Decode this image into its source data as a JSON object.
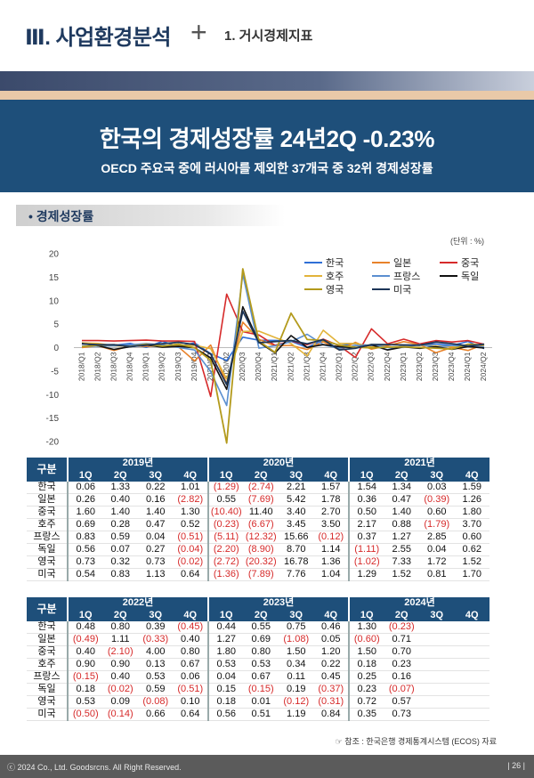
{
  "header": {
    "section_title": "Ⅲ. 사업환경분석",
    "sub_title": "1. 거시경제지표"
  },
  "banner": {
    "title": "한국의 경제성장률 24년2Q -0.23%",
    "subtitle": "OECD 주요국 중에 러시아를 제외한 37개국 중 32위 경제성장률"
  },
  "chart_label": "경제성장률",
  "unit": "(단위 : %)",
  "chart_data": {
    "type": "line",
    "title": "",
    "xlabel": "",
    "ylabel": "",
    "ylim": [
      -20,
      20
    ],
    "yticks": [
      20,
      15,
      10,
      5,
      0,
      -5,
      -10,
      -15,
      -20
    ],
    "grid": false,
    "legend_placement": "top-right",
    "categories": [
      "2018/Q1",
      "2018/Q2",
      "2018/Q3",
      "2018/Q4",
      "2019/Q1",
      "2019/Q2",
      "2019/Q3",
      "2019/Q4",
      "2020/Q1",
      "2020/Q2",
      "2020/Q3",
      "2020/Q4",
      "2021/Q1",
      "2021/Q2",
      "2021/Q3",
      "2021/Q4",
      "2022/Q1",
      "2022/Q2",
      "2022/Q3",
      "2022/Q4",
      "2023/Q1",
      "2023/Q2",
      "2023/Q3",
      "2023/Q4",
      "2024/Q1",
      "2024/Q2"
    ],
    "series": [
      {
        "name": "한국",
        "color": "#2f6fd6",
        "width": 1.6,
        "values": [
          1.0,
          0.6,
          0.5,
          0.9,
          0.06,
          1.33,
          0.22,
          1.01,
          -1.29,
          -2.74,
          2.21,
          1.57,
          1.54,
          1.34,
          0.03,
          1.59,
          0.48,
          0.8,
          0.39,
          -0.45,
          0.44,
          0.55,
          0.75,
          0.46,
          1.3,
          -0.23
        ]
      },
      {
        "name": "일본",
        "color": "#e8822a",
        "width": 1.6,
        "values": [
          0.0,
          0.4,
          -0.6,
          0.4,
          0.26,
          0.4,
          0.16,
          -2.82,
          0.55,
          -7.69,
          5.42,
          1.78,
          0.36,
          0.47,
          -0.39,
          1.26,
          -0.49,
          1.11,
          -0.33,
          0.4,
          1.27,
          0.69,
          -1.08,
          0.05,
          -0.6,
          0.71
        ]
      },
      {
        "name": "중국",
        "color": "#d62a2a",
        "width": 1.6,
        "values": [
          1.5,
          1.5,
          1.4,
          1.5,
          1.6,
          1.4,
          1.4,
          1.3,
          -10.4,
          11.4,
          3.4,
          2.7,
          0.5,
          1.4,
          0.6,
          1.8,
          0.4,
          -2.1,
          4.0,
          0.8,
          1.8,
          0.8,
          1.5,
          1.2,
          1.5,
          0.7
        ]
      },
      {
        "name": "호주",
        "color": "#e2b33a",
        "width": 1.6,
        "values": [
          1.0,
          0.9,
          0.4,
          0.3,
          0.69,
          0.28,
          0.47,
          0.52,
          -0.23,
          -6.67,
          3.45,
          3.5,
          2.17,
          0.88,
          -1.79,
          3.7,
          0.9,
          0.9,
          0.13,
          0.67,
          0.53,
          0.53,
          0.34,
          0.22,
          0.18,
          0.23
        ]
      },
      {
        "name": "프랑스",
        "color": "#5b8fd0",
        "width": 1.6,
        "values": [
          0.3,
          0.3,
          0.4,
          0.6,
          0.83,
          0.59,
          0.04,
          -0.51,
          -5.11,
          -12.32,
          15.66,
          -0.12,
          0.37,
          1.27,
          2.85,
          0.6,
          -0.15,
          0.4,
          0.53,
          0.06,
          0.04,
          0.67,
          0.11,
          0.45,
          0.25,
          0.16
        ]
      },
      {
        "name": "독일",
        "color": "#111111",
        "width": 1.6,
        "values": [
          0.9,
          0.4,
          -0.4,
          0.2,
          0.56,
          0.07,
          0.27,
          -0.04,
          -2.2,
          -8.9,
          8.7,
          1.14,
          -1.11,
          2.55,
          0.04,
          0.62,
          0.18,
          -0.02,
          0.59,
          -0.51,
          0.15,
          -0.15,
          0.19,
          -0.37,
          0.23,
          -0.07
        ]
      },
      {
        "name": "영국",
        "color": "#b39a1c",
        "width": 1.8,
        "values": [
          0.2,
          0.5,
          0.6,
          0.2,
          0.73,
          0.32,
          0.73,
          -0.02,
          -2.72,
          -20.32,
          16.78,
          1.36,
          -1.02,
          7.33,
          1.72,
          1.52,
          0.53,
          0.09,
          -0.08,
          0.1,
          0.18,
          0.01,
          -0.12,
          -0.31,
          0.72,
          0.57
        ]
      },
      {
        "name": "미국",
        "color": "#1c3557",
        "width": 1.8,
        "values": [
          0.8,
          0.6,
          0.6,
          0.2,
          0.54,
          0.83,
          1.13,
          0.64,
          -1.36,
          -7.89,
          7.76,
          1.04,
          1.29,
          1.52,
          0.81,
          1.7,
          -0.5,
          -0.14,
          0.66,
          0.64,
          0.56,
          0.51,
          1.19,
          0.84,
          0.35,
          0.73
        ]
      }
    ]
  },
  "table1": {
    "gubun": "구분",
    "years": [
      "2019년",
      "2020년",
      "2021년"
    ],
    "quarters": [
      "1Q",
      "2Q",
      "3Q",
      "4Q"
    ],
    "rows": [
      {
        "label": "한국",
        "values": [
          "0.06",
          "1.33",
          "0.22",
          "1.01",
          "(1.29)",
          "(2.74)",
          "2.21",
          "1.57",
          "1.54",
          "1.34",
          "0.03",
          "1.59"
        ]
      },
      {
        "label": "일본",
        "values": [
          "0.26",
          "0.40",
          "0.16",
          "(2.82)",
          "0.55",
          "(7.69)",
          "5.42",
          "1.78",
          "0.36",
          "0.47",
          "(0.39)",
          "1.26"
        ]
      },
      {
        "label": "중국",
        "values": [
          "1.60",
          "1.40",
          "1.40",
          "1.30",
          "(10.40)",
          "11.40",
          "3.40",
          "2.70",
          "0.50",
          "1.40",
          "0.60",
          "1.80"
        ]
      },
      {
        "label": "호주",
        "values": [
          "0.69",
          "0.28",
          "0.47",
          "0.52",
          "(0.23)",
          "(6.67)",
          "3.45",
          "3.50",
          "2.17",
          "0.88",
          "(1.79)",
          "3.70"
        ]
      },
      {
        "label": "프랑스",
        "values": [
          "0.83",
          "0.59",
          "0.04",
          "(0.51)",
          "(5.11)",
          "(12.32)",
          "15.66",
          "(0.12)",
          "0.37",
          "1.27",
          "2.85",
          "0.60"
        ]
      },
      {
        "label": "독일",
        "values": [
          "0.56",
          "0.07",
          "0.27",
          "(0.04)",
          "(2.20)",
          "(8.90)",
          "8.70",
          "1.14",
          "(1.11)",
          "2.55",
          "0.04",
          "0.62"
        ]
      },
      {
        "label": "영국",
        "values": [
          "0.73",
          "0.32",
          "0.73",
          "(0.02)",
          "(2.72)",
          "(20.32)",
          "16.78",
          "1.36",
          "(1.02)",
          "7.33",
          "1.72",
          "1.52"
        ]
      },
      {
        "label": "미국",
        "values": [
          "0.54",
          "0.83",
          "1.13",
          "0.64",
          "(1.36)",
          "(7.89)",
          "7.76",
          "1.04",
          "1.29",
          "1.52",
          "0.81",
          "1.70"
        ]
      }
    ]
  },
  "table2": {
    "gubun": "구분",
    "years": [
      "2022년",
      "2023년",
      "2024년"
    ],
    "quarters": [
      "1Q",
      "2Q",
      "3Q",
      "4Q"
    ],
    "rows": [
      {
        "label": "한국",
        "values": [
          "0.48",
          "0.80",
          "0.39",
          "(0.45)",
          "0.44",
          "0.55",
          "0.75",
          "0.46",
          "1.30",
          "(0.23)",
          "",
          ""
        ]
      },
      {
        "label": "일본",
        "values": [
          "(0.49)",
          "1.11",
          "(0.33)",
          "0.40",
          "1.27",
          "0.69",
          "(1.08)",
          "0.05",
          "(0.60)",
          "0.71",
          "",
          ""
        ]
      },
      {
        "label": "중국",
        "values": [
          "0.40",
          "(2.10)",
          "4.00",
          "0.80",
          "1.80",
          "0.80",
          "1.50",
          "1.20",
          "1.50",
          "0.70",
          "",
          ""
        ]
      },
      {
        "label": "호주",
        "values": [
          "0.90",
          "0.90",
          "0.13",
          "0.67",
          "0.53",
          "0.53",
          "0.34",
          "0.22",
          "0.18",
          "0.23",
          "",
          ""
        ]
      },
      {
        "label": "프랑스",
        "values": [
          "(0.15)",
          "0.40",
          "0.53",
          "0.06",
          "0.04",
          "0.67",
          "0.11",
          "0.45",
          "0.25",
          "0.16",
          "",
          ""
        ]
      },
      {
        "label": "독일",
        "values": [
          "0.18",
          "(0.02)",
          "0.59",
          "(0.51)",
          "0.15",
          "(0.15)",
          "0.19",
          "(0.37)",
          "0.23",
          "(0.07)",
          "",
          ""
        ]
      },
      {
        "label": "영국",
        "values": [
          "0.53",
          "0.09",
          "(0.08)",
          "0.10",
          "0.18",
          "0.01",
          "(0.12)",
          "(0.31)",
          "0.72",
          "0.57",
          "",
          ""
        ]
      },
      {
        "label": "미국",
        "values": [
          "(0.50)",
          "(0.14)",
          "0.66",
          "0.64",
          "0.56",
          "0.51",
          "1.19",
          "0.84",
          "0.35",
          "0.73",
          "",
          ""
        ]
      }
    ]
  },
  "source": "☞ 참조 : 한국은행 경제통계시스템 (ECOS) 자료",
  "footer": {
    "copyright": "ⓒ 2024 Co., Ltd. Goodsrcns. All Right Reserved.",
    "page": "| 26 |"
  }
}
